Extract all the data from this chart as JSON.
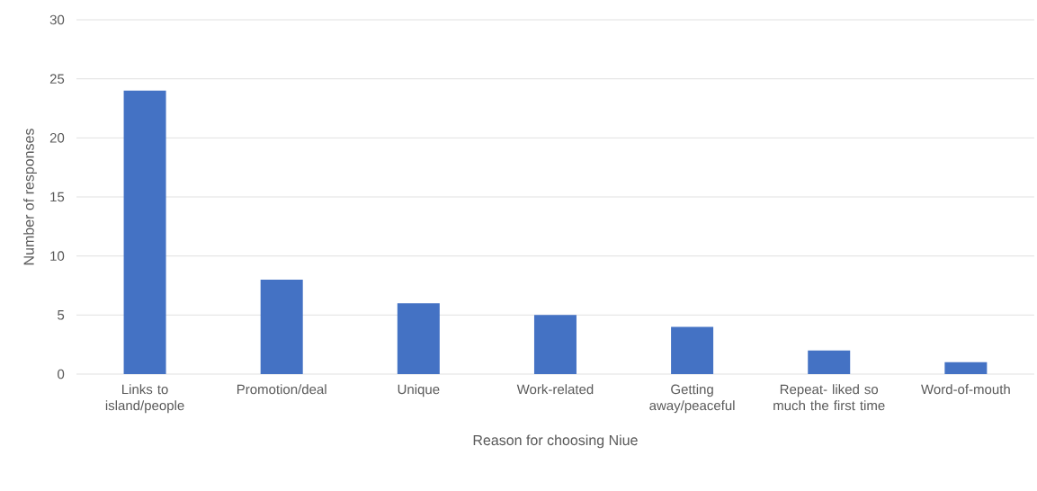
{
  "chart_data": {
    "type": "bar",
    "xlabel": "Reason for choosing Niue",
    "ylabel": "Number of responses",
    "categories": [
      "Links to island/people",
      "Promotion/deal",
      "Unique",
      "Work-related",
      "Getting away/peaceful",
      "Repeat- liked so much the first time",
      "Word-of-mouth"
    ],
    "values": [
      24,
      8,
      6,
      5,
      4,
      2,
      1
    ],
    "color": "#4472c4",
    "ylim": [
      0,
      30
    ],
    "yticks": [
      0,
      5,
      10,
      15,
      20,
      25,
      30
    ],
    "grid": "y"
  }
}
